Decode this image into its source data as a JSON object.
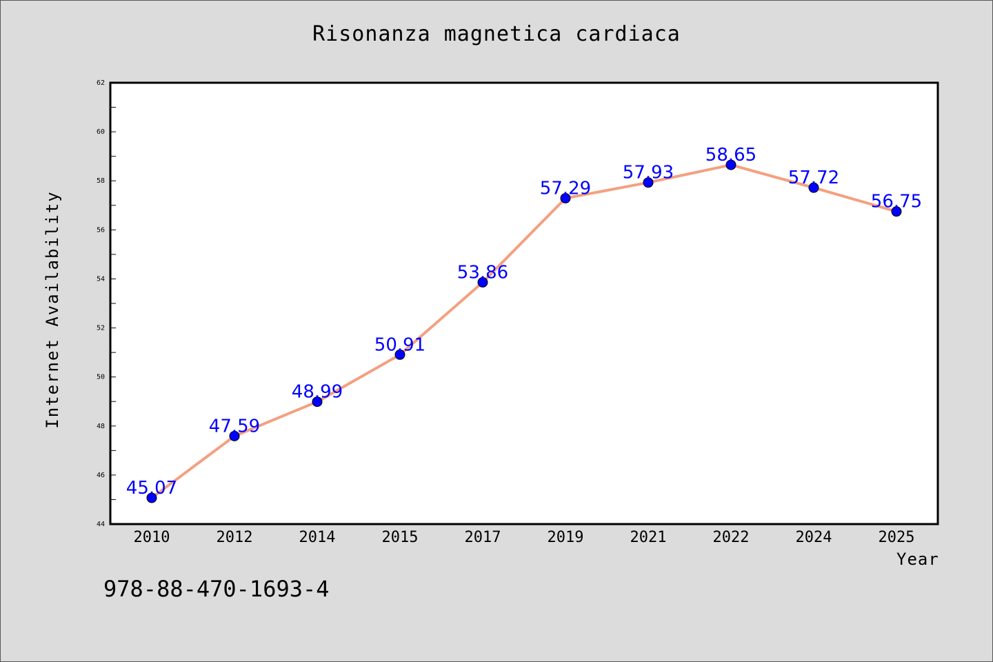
{
  "chart_data": {
    "type": "line",
    "title": "Risonanza magnetica cardiaca",
    "xlabel": "Year",
    "ylabel": "Internet Availability",
    "categories": [
      "2010",
      "2012",
      "2014",
      "2015",
      "2017",
      "2019",
      "2021",
      "2022",
      "2024",
      "2025"
    ],
    "series": [
      {
        "values": [
          45.07,
          47.59,
          48.99,
          50.91,
          53.86,
          57.29,
          57.93,
          58.65,
          57.72,
          56.75
        ],
        "labels": [
          "45.07",
          "47.59",
          "48.99",
          "50.91",
          "53.86",
          "57.29",
          "57.93",
          "58.65",
          "57.72",
          "56.75"
        ]
      }
    ],
    "ylim": [
      44,
      62
    ],
    "yticks": [
      "44",
      "46",
      "48",
      "50",
      "52",
      "54",
      "56",
      "58",
      "60",
      "62"
    ],
    "grid": false,
    "colors": {
      "line": "#f4a080",
      "marker": "#0000ff",
      "label": "#0000ff",
      "plot_bg": "#ffffff",
      "page_bg": "#dcdcdc"
    }
  },
  "footnote": "978-88-470-1693-4"
}
